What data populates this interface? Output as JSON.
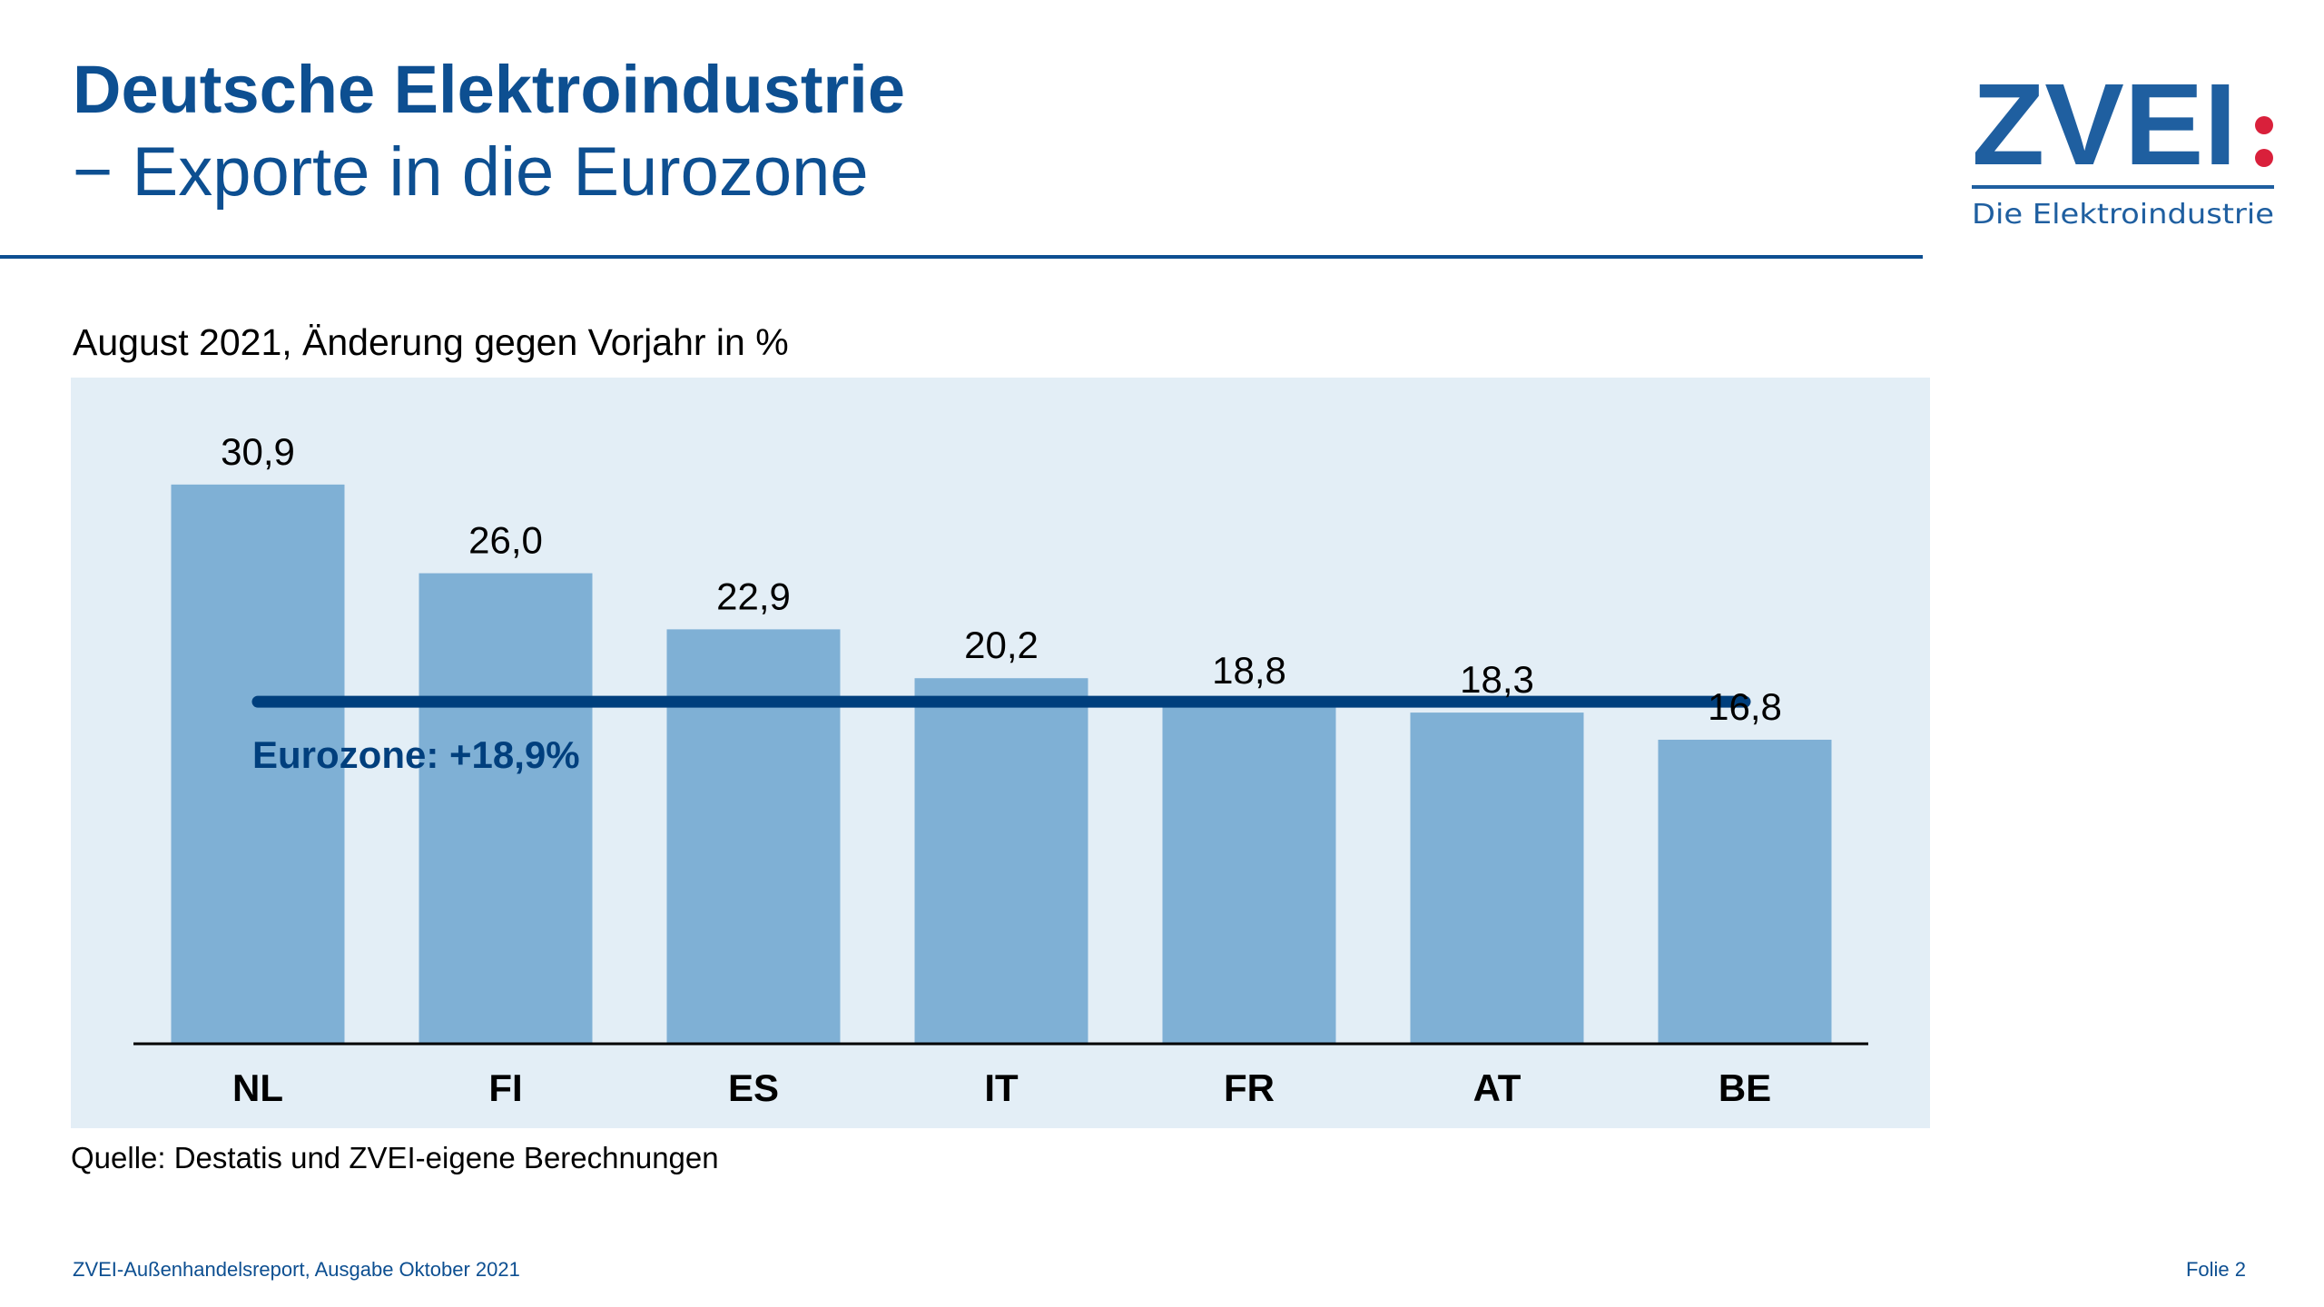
{
  "header": {
    "title": "Deutsche Elektroindustrie",
    "subtitle": "− Exporte in die Eurozone"
  },
  "logo": {
    "text": "ZVEI:",
    "tagline": "Die Elektroindustrie",
    "colors": {
      "blue": "#1f5fa0",
      "red": "#d9203b"
    }
  },
  "chart_data": {
    "type": "bar",
    "title": "August 2021, Änderung gegen Vorjahr in %",
    "categories": [
      "NL",
      "FI",
      "ES",
      "IT",
      "FR",
      "AT",
      "BE"
    ],
    "values": [
      30.9,
      26.0,
      22.9,
      20.2,
      18.8,
      18.3,
      16.8
    ],
    "value_labels": [
      "30,9",
      "26,0",
      "22,9",
      "20,2",
      "18,8",
      "18,3",
      "16,8"
    ],
    "reference_line": {
      "value": 18.9,
      "label": "Eurozone: +18,9%"
    },
    "ylim": [
      0,
      35
    ],
    "grid": false,
    "colors": {
      "bar": "#7fb0d5",
      "line": "#003f7d",
      "background": "#e3eef6"
    }
  },
  "source": "Quelle: Destatis und ZVEI-eigene Berechnungen",
  "footer": {
    "left": "ZVEI-Außenhandelsreport, Ausgabe Oktober 2021",
    "right": "Folie 2"
  }
}
